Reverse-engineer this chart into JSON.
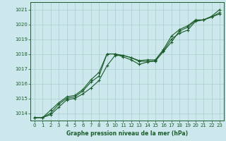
{
  "title": "Graphe pression niveau de la mer (hPa)",
  "background_color": "#cce8ec",
  "grid_color": "#aacccc",
  "line_color": "#1a5c2a",
  "xlim": [
    -0.5,
    23.5
  ],
  "ylim": [
    1013.5,
    1021.5
  ],
  "yticks": [
    1014,
    1015,
    1016,
    1017,
    1018,
    1019,
    1020,
    1021
  ],
  "xticks": [
    0,
    1,
    2,
    3,
    4,
    5,
    6,
    7,
    8,
    9,
    10,
    11,
    12,
    13,
    14,
    15,
    16,
    17,
    18,
    19,
    20,
    21,
    22,
    23
  ],
  "series": [
    [
      1013.7,
      1013.7,
      1013.9,
      1014.4,
      1014.9,
      1015.0,
      1015.3,
      1015.7,
      1016.2,
      1017.2,
      1017.9,
      1017.9,
      1017.75,
      1017.5,
      1017.5,
      1017.5,
      1018.2,
      1019.0,
      1019.4,
      1019.6,
      1020.2,
      1020.3,
      1020.5,
      1020.7
    ],
    [
      1013.7,
      1013.7,
      1014.0,
      1014.6,
      1015.0,
      1015.1,
      1015.5,
      1016.1,
      1016.5,
      1018.0,
      1018.0,
      1017.8,
      1017.6,
      1017.3,
      1017.45,
      1017.55,
      1018.15,
      1018.8,
      1019.55,
      1019.8,
      1020.25,
      1020.3,
      1020.5,
      1020.8
    ],
    [
      1013.7,
      1013.7,
      1014.2,
      1014.7,
      1015.1,
      1015.2,
      1015.6,
      1016.25,
      1016.75,
      1018.0,
      1018.0,
      1017.9,
      1017.75,
      1017.55,
      1017.6,
      1017.6,
      1018.3,
      1019.2,
      1019.65,
      1019.9,
      1020.3,
      1020.3,
      1020.55,
      1021.0
    ]
  ]
}
